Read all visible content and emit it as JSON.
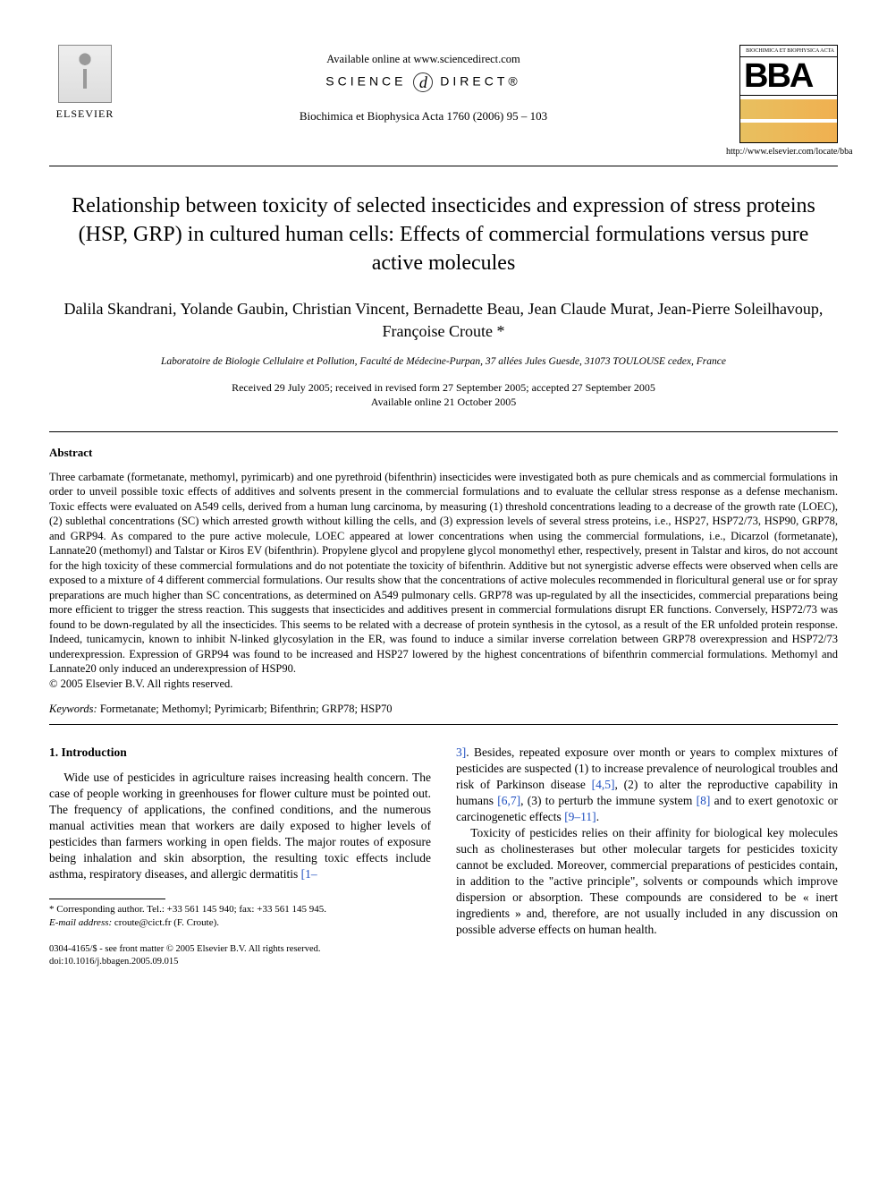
{
  "header": {
    "publisher_name": "ELSEVIER",
    "available_online": "Available online at www.sciencedirect.com",
    "science_direct_left": "SCIENCE",
    "science_direct_right": "DIRECT®",
    "journal_reference": "Biochimica et Biophysica Acta 1760 (2006) 95 – 103",
    "bba_top": "BIOCHIMICA ET BIOPHYSICA ACTA",
    "bba_logo": "BBA",
    "bba_url": "http://www.elsevier.com/locate/bba"
  },
  "title": "Relationship between toxicity of selected insecticides and expression of stress proteins (HSP, GRP) in cultured human cells: Effects of commercial formulations versus pure active molecules",
  "authors": "Dalila Skandrani, Yolande Gaubin, Christian Vincent, Bernadette Beau, Jean Claude Murat, Jean-Pierre Soleilhavoup, Françoise Croute *",
  "affiliation": "Laboratoire de Biologie Cellulaire et Pollution, Faculté de Médecine-Purpan, 37 allées Jules Guesde, 31073 TOULOUSE cedex, France",
  "dates": {
    "received": "Received 29 July 2005; received in revised form 27 September 2005; accepted 27 September 2005",
    "online": "Available online 21 October 2005"
  },
  "abstract": {
    "heading": "Abstract",
    "body": "Three carbamate (formetanate, methomyl, pyrimicarb) and one pyrethroid (bifenthrin) insecticides were investigated both as pure chemicals and as commercial formulations in order to unveil possible toxic effects of additives and solvents present in the commercial formulations and to evaluate the cellular stress response as a defense mechanism. Toxic effects were evaluated on A549 cells, derived from a human lung carcinoma, by measuring (1) threshold concentrations leading to a decrease of the growth rate (LOEC), (2) sublethal concentrations (SC) which arrested growth without killing the cells, and (3) expression levels of several stress proteins, i.e., HSP27, HSP72/73, HSP90, GRP78, and GRP94. As compared to the pure active molecule, LOEC appeared at lower concentrations when using the commercial formulations, i.e., Dicarzol (formetanate), Lannate20 (methomyl) and Talstar or Kiros EV (bifenthrin). Propylene glycol and propylene glycol monomethyl ether, respectively, present in Talstar and kiros, do not account for the high toxicity of these commercial formulations and do not potentiate the toxicity of bifenthrin. Additive but not synergistic adverse effects were observed when cells are exposed to a mixture of 4 different commercial formulations. Our results show that the concentrations of active molecules recommended in floricultural general use or for spray preparations are much higher than SC concentrations, as determined on A549 pulmonary cells. GRP78 was up-regulated by all the insecticides, commercial preparations being more efficient to trigger the stress reaction. This suggests that insecticides and additives present in commercial formulations disrupt ER functions. Conversely, HSP72/73 was found to be down-regulated by all the insecticides. This seems to be related with a decrease of protein synthesis in the cytosol, as a result of the ER unfolded protein response. Indeed, tunicamycin, known to inhibit N-linked glycosylation in the ER, was found to induce a similar inverse correlation between GRP78 overexpression and HSP72/73 underexpression. Expression of GRP94 was found to be increased and HSP27 lowered by the highest concentrations of bifenthrin commercial formulations. Methomyl and Lannate20 only induced an underexpression of HSP90.",
    "copyright": "© 2005 Elsevier B.V. All rights reserved."
  },
  "keywords": {
    "label": "Keywords:",
    "list": "Formetanate; Methomyl; Pyrimicarb; Bifenthrin; GRP78; HSP70"
  },
  "intro": {
    "heading": "1. Introduction",
    "col1_p1a": "Wide use of pesticides in agriculture raises increasing health concern. The case of people working in greenhouses for flower culture must be pointed out. The frequency of applications, the confined conditions, and the numerous manual activities mean that workers are daily exposed to higher levels of pesticides than farmers working in open fields. The major routes of exposure being inhalation and skin absorption, the resulting toxic effects include asthma, respiratory diseases, and allergic dermatitis ",
    "cite1": "[1–",
    "col2_cite1b": "3]",
    "col2_p1a": ". Besides, repeated exposure over month or years to complex mixtures of pesticides are suspected (1) to increase prevalence of neurological troubles and risk of Parkinson disease ",
    "cite2": "[4,5]",
    "col2_p1b": ", (2) to alter the reproductive capability in humans ",
    "cite3": "[6,7]",
    "col2_p1c": ", (3) to perturb the immune system ",
    "cite4": "[8]",
    "col2_p1d": " and to exert genotoxic or carcinogenetic effects ",
    "cite5": "[9–11]",
    "col2_p1e": ".",
    "col2_p2": "Toxicity of pesticides relies on their affinity for biological key molecules such as cholinesterases but other molecular targets for pesticides toxicity cannot be excluded. Moreover, commercial preparations of pesticides contain, in addition to the \"active principle\", solvents or compounds which improve dispersion or absorption. These compounds are considered to be « inert ingredients » and, therefore, are not usually included in any discussion on possible adverse effects on human health."
  },
  "footnote": {
    "corr": "* Corresponding author. Tel.: +33 561 145 940; fax: +33 561 145 945.",
    "email_label": "E-mail address:",
    "email": "croute@cict.fr (F. Croute)."
  },
  "bottom": {
    "line1": "0304-4165/$ - see front matter © 2005 Elsevier B.V. All rights reserved.",
    "line2": "doi:10.1016/j.bbagen.2005.09.015"
  },
  "colors": {
    "citation": "#2050c0",
    "text": "#000000",
    "bg": "#ffffff"
  }
}
